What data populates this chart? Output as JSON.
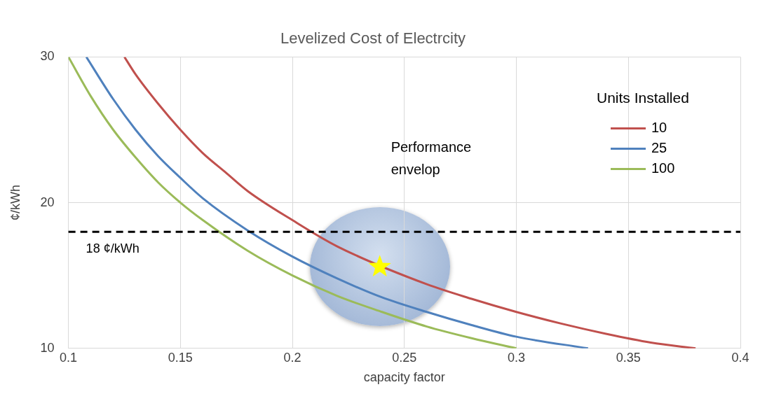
{
  "chart_data": {
    "type": "line",
    "title": "Levelized Cost of Electrcity",
    "xlabel": "capacity factor",
    "ylabel": "¢/kWh",
    "legend_title": "Units Installed",
    "legend": "top right",
    "grid": true,
    "marker": "none",
    "line_style": "solid",
    "xlim": [
      0.1,
      0.4
    ],
    "xticks": [
      0.1,
      0.15,
      0.2,
      0.25,
      0.3,
      0.35,
      0.4
    ],
    "ylim": [
      10,
      30
    ],
    "yticks": [
      10,
      20,
      30
    ],
    "series": [
      {
        "name": "10",
        "color": "#c0504d",
        "x": [
          0.125,
          0.13,
          0.14,
          0.15,
          0.16,
          0.17,
          0.18,
          0.2,
          0.22,
          0.26,
          0.28,
          0.3,
          0.32,
          0.34,
          0.36,
          0.38
        ],
        "values": [
          30,
          28.8,
          26.8,
          25,
          23.4,
          22.1,
          20.8,
          18.8,
          17,
          14.4,
          13.4,
          12.5,
          11.7,
          11,
          10.4,
          10
        ]
      },
      {
        "name": "25",
        "color": "#4f81bd",
        "x": [
          0.108,
          0.12,
          0.13,
          0.14,
          0.15,
          0.16,
          0.18,
          0.2,
          0.22,
          0.24,
          0.26,
          0.28,
          0.3,
          0.332
        ],
        "values": [
          30,
          27.1,
          25,
          23.2,
          21.7,
          20.3,
          18.1,
          16.3,
          14.8,
          13.5,
          12.5,
          11.6,
          10.8,
          10
        ]
      },
      {
        "name": "100",
        "color": "#9bbb59",
        "x": [
          0.1,
          0.11,
          0.12,
          0.13,
          0.14,
          0.15,
          0.16,
          0.18,
          0.2,
          0.22,
          0.24,
          0.26,
          0.28,
          0.3
        ],
        "values": [
          30,
          27.3,
          25,
          23.1,
          21.4,
          20,
          18.8,
          16.7,
          15,
          13.6,
          12.5,
          11.5,
          10.7,
          10
        ]
      },
      {
        "type": "scatter",
        "marker": "star",
        "color": "#ffff00",
        "x": [
          0.239
        ],
        "values": [
          15.6
        ]
      }
    ],
    "ref_lines": [
      {
        "axis": "y",
        "value": 18,
        "label": "18 ¢/kWh",
        "color": "#000000",
        "line_style": "dashed"
      }
    ],
    "annotations": [
      "Performance envelop"
    ]
  }
}
